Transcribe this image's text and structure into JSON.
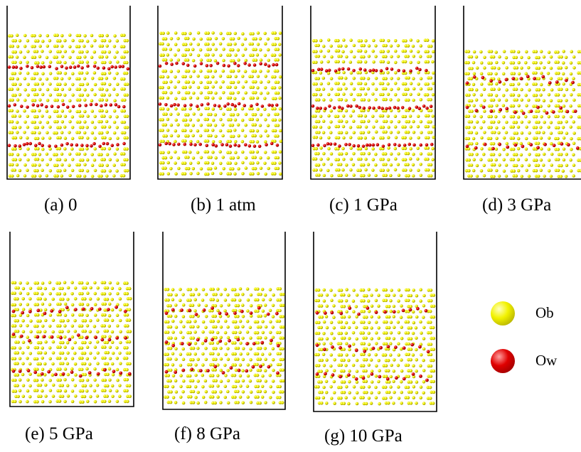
{
  "panels": [
    {
      "caption": "(a)  0"
    },
    {
      "caption": "(b) 1 atm"
    },
    {
      "caption": "(c) 1 GPa"
    },
    {
      "caption": "(d) 3 GPa"
    },
    {
      "caption": "(e) 5 GPa"
    },
    {
      "caption": "(f) 8 GPa"
    },
    {
      "caption": "(g) 10 GPa"
    }
  ],
  "legend": [
    {
      "label": "Ob",
      "color": "#f2f200"
    },
    {
      "label": "Ow",
      "color": "#e00000"
    }
  ]
}
